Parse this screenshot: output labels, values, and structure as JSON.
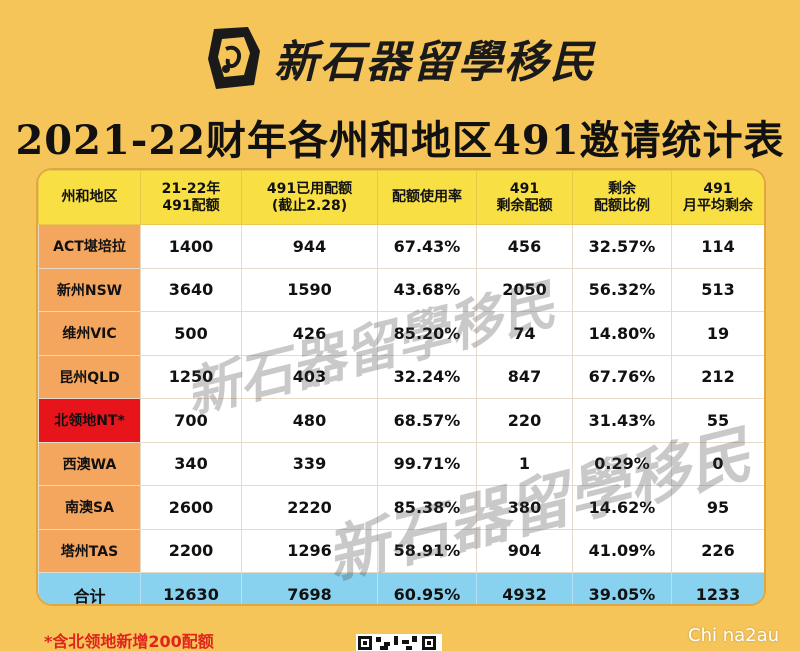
{
  "brand": {
    "name": "新石器留學移民",
    "logo_icon": "stone-tool-logo-icon",
    "accent": "#f6c55a"
  },
  "title": "2021-22财年各州和地区491邀请统计表",
  "table": {
    "headers": [
      [
        "州和地区"
      ],
      [
        "21-22年",
        "491配额"
      ],
      [
        "491已用配额",
        "(截止2.28)"
      ],
      [
        "配额使用率"
      ],
      [
        "491",
        "剩余配额"
      ],
      [
        "剩余",
        "配额比例"
      ],
      [
        "491",
        "月平均剩余"
      ]
    ],
    "rows": [
      [
        "ACT堪培拉",
        "1400",
        "944",
        "67.43%",
        "456",
        "32.57%",
        "114"
      ],
      [
        "新州NSW",
        "3640",
        "1590",
        "43.68%",
        "2050",
        "56.32%",
        "513"
      ],
      [
        "维州VIC",
        "500",
        "426",
        "85.20%",
        "74",
        "14.80%",
        "19"
      ],
      [
        "昆州QLD",
        "1250",
        "403",
        "32.24%",
        "847",
        "67.76%",
        "212"
      ],
      [
        "北领地NT*",
        "700",
        "480",
        "68.57%",
        "220",
        "31.43%",
        "55"
      ],
      [
        "西澳WA",
        "340",
        "339",
        "99.71%",
        "1",
        "0.29%",
        "0"
      ],
      [
        "南澳SA",
        "2600",
        "2220",
        "85.38%",
        "380",
        "14.62%",
        "95"
      ],
      [
        "塔州TAS",
        "2200",
        "1296",
        "58.91%",
        "904",
        "41.09%",
        "226"
      ]
    ],
    "highlight_row_color": "#e8141c",
    "total": [
      "合计",
      "12630",
      "7698",
      "60.95%",
      "4932",
      "39.05%",
      "1233"
    ]
  },
  "footnote": "*含北领地新增200配额",
  "credit": "Chi na2au",
  "colors": {
    "header_bg": "#f7df44",
    "region_bg": "#f4a55e",
    "total_bg": "#88d2ef",
    "footnote": "#e0231f"
  }
}
